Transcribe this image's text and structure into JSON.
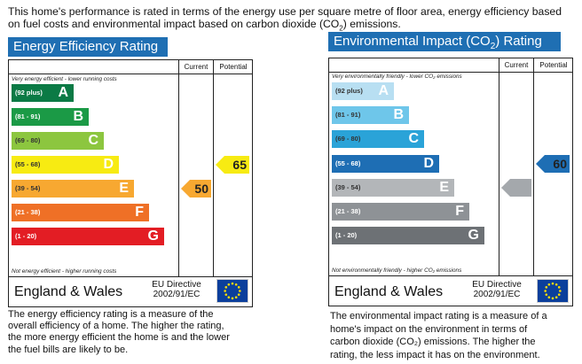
{
  "intro": {
    "line1": "This home's performance is rated in terms of the energy use per square metre of floor area, energy efficiency based",
    "line2_pre": "on fuel costs and environmental impact based on carbon dioxide (CO",
    "line2_sub": "2",
    "line2_post": ") emissions."
  },
  "columns": {
    "current": "Current",
    "potential": "Potential"
  },
  "energy": {
    "title": "Energy Efficiency Rating",
    "title_color": "#1f6fb3",
    "top_note": "Very energy efficient - lower running costs",
    "bottom_note": "Not energy efficient - higher running costs",
    "region": "England & Wales",
    "directive_line1": "EU Directive",
    "directive_line2": "2002/91/EC",
    "bands": [
      {
        "range": "(92 plus)",
        "letter": "A",
        "color": "#0b7a45",
        "range_color": "#ffffff"
      },
      {
        "range": "(81 - 91)",
        "letter": "B",
        "color": "#1b9a46",
        "range_color": "#ffffff"
      },
      {
        "range": "(69 - 80)",
        "letter": "C",
        "color": "#8cc63f",
        "range_color": "#333333"
      },
      {
        "range": "(55 - 68)",
        "letter": "D",
        "color": "#f7eb12",
        "range_color": "#333333"
      },
      {
        "range": "(39 - 54)",
        "letter": "E",
        "color": "#f7a831",
        "range_color": "#333333"
      },
      {
        "range": "(21 - 38)",
        "letter": "F",
        "color": "#ef7026",
        "range_color": "#ffffff"
      },
      {
        "range": "(1 - 20)",
        "letter": "G",
        "color": "#e31d24",
        "range_color": "#ffffff"
      }
    ],
    "current": {
      "value": "50",
      "band": "E",
      "color": "#f7a831"
    },
    "potential": {
      "value": "65",
      "band": "D",
      "color": "#f7eb12"
    },
    "description": [
      "The energy efficiency rating is a measure of the",
      "overall efficiency of a home. The higher the rating,",
      "the more energy efficient the home is and the lower",
      "the fuel bills are likely to be."
    ]
  },
  "environment": {
    "title_pre": "Environmental Impact (CO",
    "title_sub": "2",
    "title_post": ") Rating",
    "title_color": "#1f6fb3",
    "top_note": "Very environmentally friendly - lower CO₂ emissions",
    "bottom_note": "Not environmentally friendly - higher CO₂ emissions",
    "region": "England & Wales",
    "directive_line1": "EU Directive",
    "directive_line2": "2002/91/EC",
    "bands": [
      {
        "range": "(92 plus)",
        "letter": "A",
        "color": "#b8dff2",
        "range_color": "#333333"
      },
      {
        "range": "(81 - 91)",
        "letter": "B",
        "color": "#6ec6ea",
        "range_color": "#333333"
      },
      {
        "range": "(69 - 80)",
        "letter": "C",
        "color": "#2aa3d8",
        "range_color": "#333333"
      },
      {
        "range": "(55 - 68)",
        "letter": "D",
        "color": "#1e6eb4",
        "range_color": "#ffffff"
      },
      {
        "range": "(39 - 54)",
        "letter": "E",
        "color": "#b3b6b9",
        "range_color": "#333333"
      },
      {
        "range": "(21 - 38)",
        "letter": "F",
        "color": "#8e9296",
        "range_color": "#ffffff"
      },
      {
        "range": "(1 - 20)",
        "letter": "G",
        "color": "#6d7175",
        "range_color": "#ffffff"
      }
    ],
    "current": {
      "value": "",
      "band": "E",
      "color": "#a4a8ac"
    },
    "potential": {
      "value": "60",
      "band": "D",
      "color": "#1e6eb4"
    },
    "description": [
      "The environmental impact rating is a measure of a",
      "home's impact on the environment in terms of",
      "carbon dioxide (CO₂) emissions. The higher the",
      "rating, the less impact it has on the environment."
    ]
  }
}
